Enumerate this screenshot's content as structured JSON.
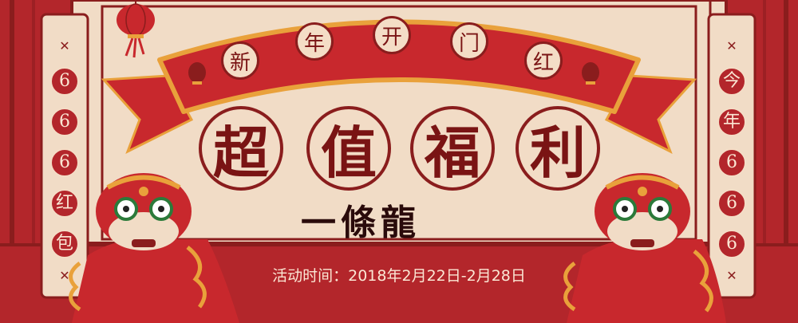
{
  "banner": {
    "words": [
      "新",
      "年",
      "开",
      "门",
      "红"
    ]
  },
  "headline": {
    "chars": [
      "超",
      "值",
      "福",
      "利"
    ]
  },
  "subtitle": "一條龍",
  "period": "活动时间：2018年2月22日-2月28日",
  "left_scroll": {
    "chars": [
      "6",
      "6",
      "6",
      "红",
      "包"
    ]
  },
  "right_scroll": {
    "chars": [
      "今",
      "年",
      "6",
      "6",
      "6"
    ]
  },
  "colors": {
    "red": "#b3262b",
    "dark_red": "#8a1d1d",
    "cream": "#f4ddc6",
    "gold": "#e9a13b"
  }
}
